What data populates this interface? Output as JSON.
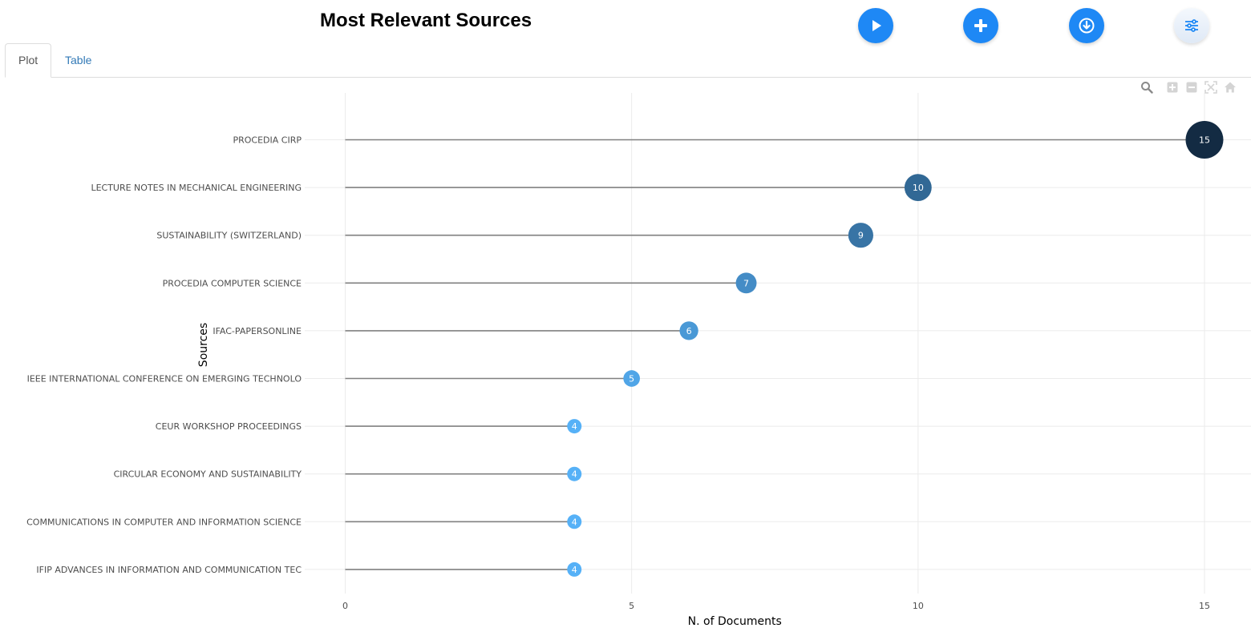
{
  "header": {
    "title": "Most Relevant Sources"
  },
  "toolbar": {
    "buttons": [
      {
        "name": "play-button",
        "icon": "play-icon"
      },
      {
        "name": "add-button",
        "icon": "plus-icon"
      },
      {
        "name": "download-button",
        "icon": "download-icon"
      },
      {
        "name": "options-button",
        "icon": "sliders-icon"
      }
    ]
  },
  "tabs": {
    "plot_label": "Plot",
    "table_label": "Table",
    "active": "Plot"
  },
  "modebar": [
    "zoom-icon",
    "zoom-in-icon",
    "zoom-out-icon",
    "autoscale-icon",
    "reset-axes-icon"
  ],
  "chart_data": {
    "type": "lollipop",
    "xlabel": "N. of Documents",
    "ylabel": "Sources",
    "xlim": [
      0,
      15.6
    ],
    "xticks": [
      0,
      5,
      10,
      15
    ],
    "grid": true,
    "categories": [
      "PROCEDIA CIRP",
      "LECTURE NOTES IN MECHANICAL ENGINEERING",
      "SUSTAINABILITY (SWITZERLAND)",
      "PROCEDIA COMPUTER SCIENCE",
      "IFAC-PAPERSONLINE",
      "IEEE INTERNATIONAL CONFERENCE ON EMERGING TECHNOLO",
      "CEUR WORKSHOP PROCEEDINGS",
      "CIRCULAR ECONOMY AND SUSTAINABILITY",
      "COMMUNICATIONS IN COMPUTER AND INFORMATION SCIENCE",
      "IFIP ADVANCES IN INFORMATION AND COMMUNICATION TEC"
    ],
    "values": [
      15,
      10,
      9,
      7,
      6,
      5,
      4,
      4,
      4,
      4
    ],
    "colors": {
      "stem": "#808080",
      "scale_low": "#56b1f7",
      "scale_high": "#132b43",
      "grid": "#ebebeb"
    }
  }
}
